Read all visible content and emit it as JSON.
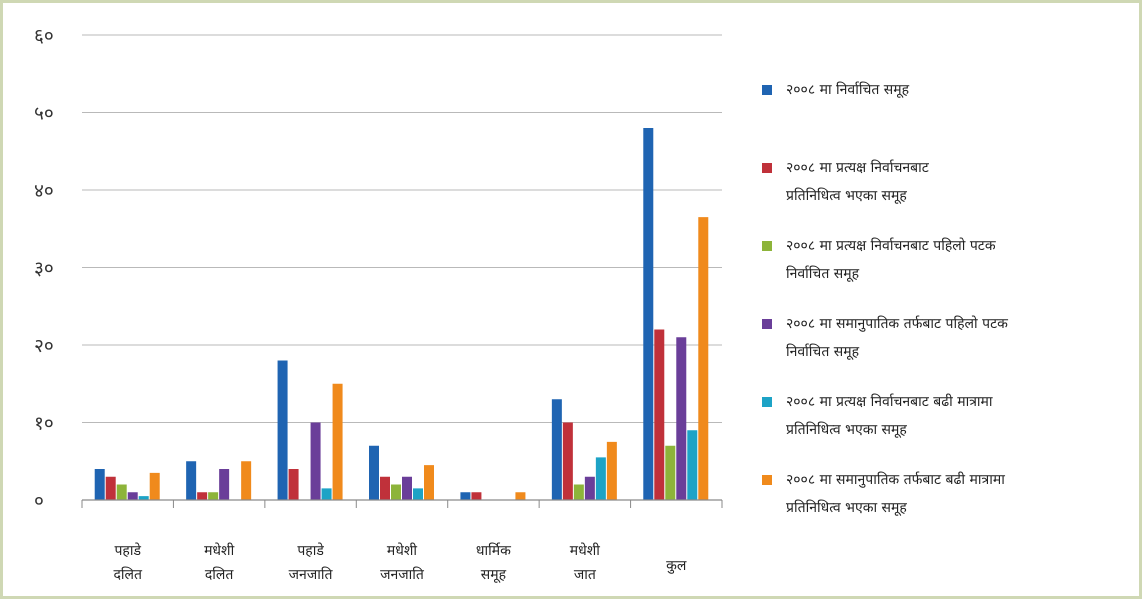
{
  "chart_data": {
    "type": "bar",
    "categories": [
      [
        "पहाडे",
        "दलित"
      ],
      [
        "मधेशी",
        "दलित"
      ],
      [
        "पहाडे",
        "जनजाति"
      ],
      [
        "मधेशी",
        "जनजाति"
      ],
      [
        "धार्मिक",
        "समूह"
      ],
      [
        "मधेशी",
        "जात"
      ],
      [
        "कुल"
      ]
    ],
    "ylim": [
      0,
      60
    ],
    "yticks": [
      0,
      10,
      20,
      30,
      40,
      50,
      60
    ],
    "ytick_labels": [
      "०",
      "१०",
      "२०",
      "३०",
      "४०",
      "५०",
      "६०"
    ],
    "grid": true,
    "legend_position": "right",
    "series": [
      {
        "name": [
          "२००८ मा निर्वाचित समूह"
        ],
        "color": "#1f64b2",
        "values": [
          4,
          5,
          18,
          7,
          1,
          13,
          48
        ]
      },
      {
        "name": [
          "२००८ मा प्रत्यक्ष निर्वाचनबाट",
          "प्रतिनिधित्व भएका समूह"
        ],
        "color": "#c0313a",
        "values": [
          3,
          1,
          4,
          3,
          1,
          10,
          22
        ]
      },
      {
        "name": [
          "२००८ मा प्रत्यक्ष निर्वाचनबाट पहिलो पटक",
          "निर्वाचित समूह"
        ],
        "color": "#8db43a",
        "values": [
          2,
          1,
          0,
          2,
          0,
          2,
          7
        ]
      },
      {
        "name": [
          "२००८ मा समानुपातिक तर्फबाट पहिलो पटक",
          "निर्वाचित समूह"
        ],
        "color": "#6a3e99",
        "values": [
          1,
          4,
          10,
          3,
          0,
          3,
          21
        ]
      },
      {
        "name": [
          "२००८ मा प्रत्यक्ष निर्वाचनबाट बढी मात्रामा",
          "प्रतिनिधित्व भएका समूह"
        ],
        "color": "#1da3c6",
        "values": [
          0.5,
          0,
          1.5,
          1.5,
          0,
          5.5,
          9
        ]
      },
      {
        "name": [
          "२००८ मा समानुपातिक तर्फबाट बढी मात्रामा",
          "प्रतिनिधित्व भएका समूह"
        ],
        "color": "#f08a1c",
        "values": [
          3.5,
          5,
          15,
          4.5,
          1,
          7.5,
          36.5
        ]
      }
    ]
  }
}
